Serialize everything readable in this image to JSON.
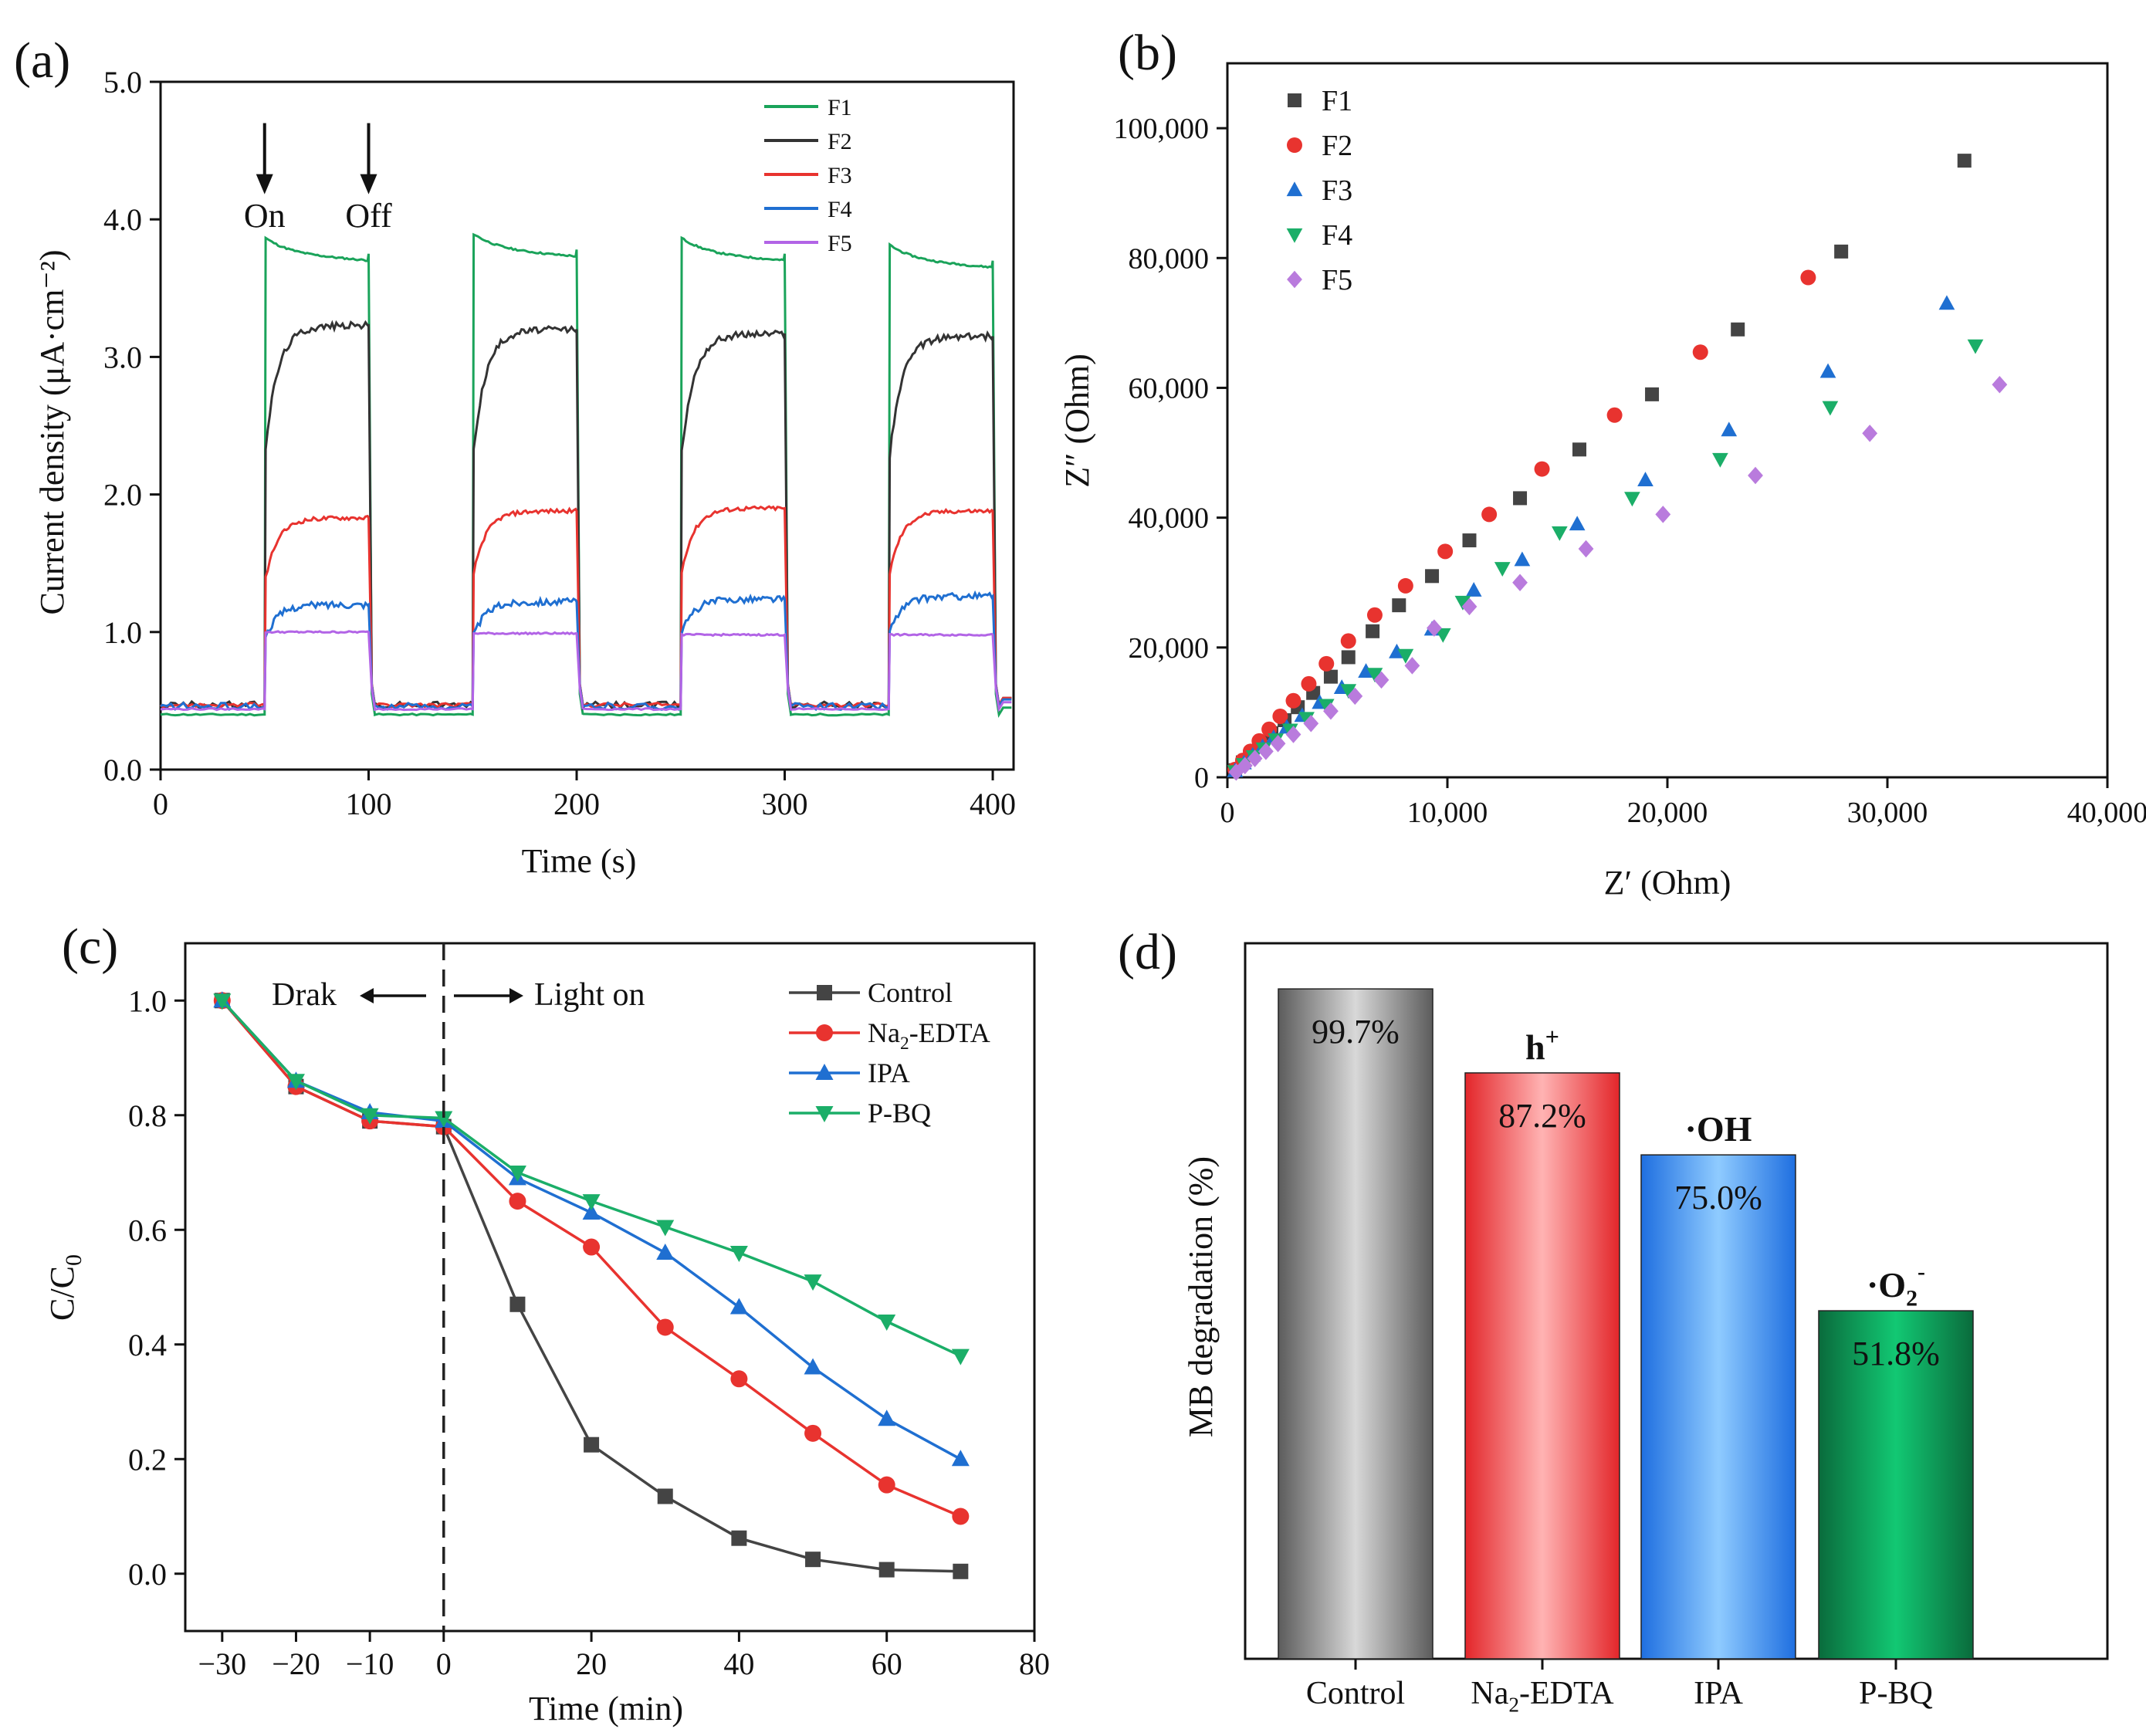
{
  "chart_data": [
    {
      "id": "a",
      "panel_label": "(a)",
      "type": "line",
      "xlabel": "Time (s)",
      "ylabel": "Current density (μA·cm⁻²)",
      "xlim": [
        0,
        410
      ],
      "ylim": [
        0,
        5
      ],
      "xticks": [
        0,
        100,
        200,
        300,
        400
      ],
      "xtick_labels": [
        "0",
        "100",
        "200",
        "300",
        "400"
      ],
      "yticks": [
        0,
        1,
        2,
        3,
        4,
        5
      ],
      "ytick_labels": [
        "0.0",
        "1.0",
        "2.0",
        "3.0",
        "4.0",
        "5.0"
      ],
      "legend_position": "top-right",
      "annotations": [
        {
          "text": "On",
          "x": 50,
          "arrow_from": 4.7,
          "arrow_to": 4.25,
          "label_y": 4.0
        },
        {
          "text": "Off",
          "x": 100,
          "arrow_from": 4.7,
          "arrow_to": 4.25,
          "label_y": 4.0
        }
      ],
      "series": [
        {
          "name": "F1",
          "color": "#1aa35a",
          "light_on_cycles": [
            [
              50,
              100
            ],
            [
              150,
              200
            ],
            [
              250,
              300
            ],
            [
              350,
              400
            ]
          ],
          "on_values": [
            3.75,
            3.78,
            3.75,
            3.7
          ],
          "off_value": 0.4
        },
        {
          "name": "F2",
          "color": "#333333",
          "light_on_cycles": [
            [
              50,
              100
            ],
            [
              150,
              200
            ],
            [
              250,
              300
            ],
            [
              350,
              400
            ]
          ],
          "on_values": [
            3.23,
            3.2,
            3.17,
            3.15
          ],
          "off_value": 0.47
        },
        {
          "name": "F3",
          "color": "#e8332f",
          "light_on_cycles": [
            [
              50,
              100
            ],
            [
              150,
              200
            ],
            [
              250,
              300
            ],
            [
              350,
              400
            ]
          ],
          "on_values": [
            1.83,
            1.88,
            1.9,
            1.88
          ],
          "off_value": 0.47
        },
        {
          "name": "F4",
          "color": "#1f6fd1",
          "light_on_cycles": [
            [
              50,
              100
            ],
            [
              150,
              200
            ],
            [
              250,
              300
            ],
            [
              350,
              400
            ]
          ],
          "on_values": [
            1.2,
            1.22,
            1.24,
            1.26
          ],
          "off_value": 0.46
        },
        {
          "name": "F5",
          "color": "#b264e6",
          "light_on_cycles": [
            [
              50,
              100
            ],
            [
              150,
              200
            ],
            [
              250,
              300
            ],
            [
              350,
              400
            ]
          ],
          "on_values": [
            1.0,
            0.99,
            0.98,
            0.98
          ],
          "off_value": 0.44
        }
      ]
    },
    {
      "id": "b",
      "panel_label": "(b)",
      "type": "scatter",
      "xlabel": "Z′ (Ohm)",
      "ylabel": "Z″ (Ohm)",
      "xlim": [
        0,
        40000
      ],
      "ylim": [
        0,
        110000
      ],
      "xticks": [
        0,
        10000,
        20000,
        30000,
        40000
      ],
      "xtick_labels": [
        "0",
        "10,000",
        "20,000",
        "30,000",
        "40,000"
      ],
      "yticks": [
        0,
        20000,
        40000,
        60000,
        80000,
        100000
      ],
      "ytick_labels": [
        "0",
        "20,000",
        "40,000",
        "60,000",
        "80,000",
        "100,000"
      ],
      "legend_position": "top-left",
      "series": [
        {
          "name": "F1",
          "color": "#444444",
          "marker": "square",
          "x": [
            350,
            700,
            1100,
            1500,
            2000,
            2600,
            3200,
            3900,
            4700,
            5500,
            6600,
            7800,
            9300,
            11000,
            13300,
            16000,
            19300,
            23200,
            27900,
            33500
          ],
          "y": [
            1100,
            2300,
            3700,
            5200,
            6800,
            8800,
            10800,
            13000,
            15500,
            18500,
            22500,
            26500,
            31000,
            36500,
            43000,
            50500,
            59000,
            69000,
            81000,
            95000
          ]
        },
        {
          "name": "F2",
          "color": "#e8332f",
          "marker": "circle",
          "x": [
            350,
            700,
            1050,
            1450,
            1900,
            2400,
            3000,
            3700,
            4500,
            5500,
            6700,
            8100,
            9900,
            11900,
            14300,
            17600,
            21500,
            26400
          ],
          "y": [
            1200,
            2600,
            4000,
            5600,
            7400,
            9400,
            11800,
            14400,
            17500,
            21000,
            25000,
            29500,
            34800,
            40500,
            47500,
            55800,
            65500,
            77000
          ]
        },
        {
          "name": "F3",
          "color": "#1f6fd1",
          "marker": "triangle-up",
          "x": [
            350,
            750,
            1150,
            1600,
            2100,
            2700,
            3400,
            4200,
            5200,
            6300,
            7700,
            9300,
            11200,
            13400,
            15900,
            19000,
            22800,
            27300,
            32700
          ],
          "y": [
            1000,
            2200,
            3400,
            4700,
            6100,
            7700,
            9500,
            11500,
            13800,
            16300,
            19300,
            22800,
            28800,
            33500,
            39000,
            45800,
            53500,
            62500,
            73000
          ]
        },
        {
          "name": "F4",
          "color": "#1bae68",
          "marker": "triangle-down",
          "x": [
            350,
            750,
            1200,
            1650,
            2200,
            2850,
            3600,
            4500,
            5500,
            6700,
            8100,
            9800,
            10700,
            12500,
            15100,
            18400,
            22400,
            27400,
            34000
          ],
          "y": [
            900,
            2000,
            3200,
            4400,
            5800,
            7300,
            9100,
            11100,
            13400,
            15900,
            18800,
            22000,
            27000,
            32200,
            37700,
            43000,
            49000,
            57000,
            66500
          ]
        },
        {
          "name": "F5",
          "color": "#b97bdd",
          "marker": "diamond",
          "x": [
            400,
            800,
            1250,
            1750,
            2300,
            3000,
            3800,
            4700,
            5800,
            7000,
            8400,
            9400,
            11000,
            13300,
            16300,
            19800,
            24000,
            29200,
            35100
          ],
          "y": [
            800,
            1800,
            2900,
            4000,
            5200,
            6600,
            8300,
            10200,
            12500,
            15000,
            17200,
            23000,
            26300,
            30000,
            35200,
            40500,
            46500,
            53000,
            60500
          ]
        }
      ]
    },
    {
      "id": "c",
      "panel_label": "(c)",
      "type": "line",
      "xlabel": "Time (min)",
      "ylabel": "C/C₀",
      "xlim": [
        -35,
        80
      ],
      "ylim": [
        -0.1,
        1.1
      ],
      "xticks": [
        -30,
        -20,
        -10,
        0,
        20,
        40,
        60,
        80
      ],
      "xtick_labels": [
        "−30",
        "−20",
        "−10",
        "0",
        "20",
        "40",
        "60",
        "80"
      ],
      "yticks": [
        0,
        0.2,
        0.4,
        0.6,
        0.8,
        1.0
      ],
      "ytick_labels": [
        "0.0",
        "0.2",
        "0.4",
        "0.6",
        "0.8",
        "1.0"
      ],
      "legend_position": "top-right",
      "dark_label": "Drak",
      "light_label": "Light on",
      "divider_x": 0,
      "x": [
        -30,
        -20,
        -10,
        0,
        10,
        20,
        30,
        40,
        50,
        60,
        70
      ],
      "series": [
        {
          "name": "Control",
          "color": "#444444",
          "marker": "square",
          "values": [
            1.0,
            0.85,
            0.79,
            0.78,
            0.47,
            0.225,
            0.135,
            0.062,
            0.025,
            0.007,
            0.004
          ]
        },
        {
          "name": "Na2-EDTA",
          "color": "#e8332f",
          "marker": "circle",
          "values": [
            1.0,
            0.85,
            0.79,
            0.78,
            0.65,
            0.57,
            0.43,
            0.34,
            0.245,
            0.155,
            0.1
          ]
        },
        {
          "name": "IPA",
          "color": "#1f6fd1",
          "marker": "triangle-up",
          "values": [
            1.0,
            0.86,
            0.805,
            0.79,
            0.69,
            0.63,
            0.56,
            0.465,
            0.36,
            0.27,
            0.2
          ]
        },
        {
          "name": "P-BQ",
          "color": "#1bae68",
          "marker": "triangle-down",
          "values": [
            1.0,
            0.86,
            0.8,
            0.795,
            0.7,
            0.65,
            0.605,
            0.56,
            0.51,
            0.44,
            0.38
          ]
        }
      ]
    },
    {
      "id": "d",
      "panel_label": "(d)",
      "type": "bar",
      "ylabel": "MB degradation (%)",
      "ylim": [
        0,
        100
      ],
      "categories": [
        "Control",
        "Na2-EDTA",
        "IPA",
        "P-BQ"
      ],
      "values": [
        99.7,
        87.2,
        75.0,
        51.8
      ],
      "value_labels": [
        "99.7%",
        "87.2%",
        "75.0%",
        "51.8%"
      ],
      "species_labels": [
        "",
        "h+",
        "·OH",
        "·O2-"
      ],
      "colors": [
        "#9a9a9a",
        "#ef3b3b",
        "#2b86e8",
        "#0f9a56"
      ]
    }
  ]
}
